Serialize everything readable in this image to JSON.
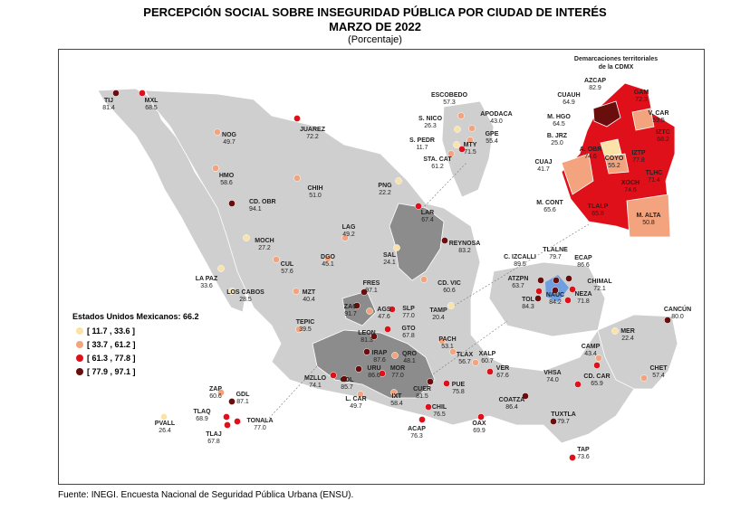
{
  "title": {
    "line1": "PERCEPCIÓN SOCIAL SOBRE INSEGURIDAD PÚBLICA POR CIUDAD DE INTERÉS",
    "line2": "MARZO DE 2022",
    "line3": "(Porcentaje)"
  },
  "source": "Fuente: INEGI. Encuesta Nacional de Seguridad Pública Urbana (ENSU).",
  "legend": {
    "title": "Estados Unidos Mexicanos: 66.2",
    "ranges": [
      "[ 11.7 , 33.6 ]",
      "[ 33.7 , 61.2 ]",
      "[ 61.3 , 77.8 ]",
      "[ 77.9 , 97.1 ]"
    ]
  },
  "colors": {
    "bin1": "#fbe3a8",
    "bin2": "#f3a47e",
    "bin3": "#e0101a",
    "bin4": "#6a0d0d",
    "land": "#cfcfcf",
    "land_dark": "#8c8c8c",
    "highlight_blue": "#6f9fe0"
  },
  "inset": {
    "title_line1": "Demarcaciones territoriales",
    "title_line2": "de la CDMX",
    "districts": [
      {
        "name": "AZCAP",
        "value": "82.9",
        "bin": 4
      },
      {
        "name": "GAM",
        "value": "72.3",
        "bin": 3
      },
      {
        "name": "CUAUH",
        "value": "64.9",
        "bin": 3
      },
      {
        "name": "V. CAR",
        "value": "59.5",
        "bin": 2
      },
      {
        "name": "M. HGO",
        "value": "64.5",
        "bin": 3
      },
      {
        "name": "IZTC",
        "value": "68.2",
        "bin": 3
      },
      {
        "name": "B. JRZ",
        "value": "25.0",
        "bin": 1
      },
      {
        "name": "A. OBR",
        "value": "74.6",
        "bin": 3
      },
      {
        "name": "COYO",
        "value": "55.2",
        "bin": 2
      },
      {
        "name": "IZTP",
        "value": "77.8",
        "bin": 3
      },
      {
        "name": "CUAJ",
        "value": "41.7",
        "bin": 2
      },
      {
        "name": "TLHC",
        "value": "71.4",
        "bin": 3
      },
      {
        "name": "XOCH",
        "value": "74.6",
        "bin": 3
      },
      {
        "name": "M. CONT",
        "value": "65.6",
        "bin": 3
      },
      {
        "name": "TLALP",
        "value": "65.8",
        "bin": 3
      },
      {
        "name": "M. ALTA",
        "value": "50.8",
        "bin": 2
      }
    ]
  },
  "cities": [
    {
      "name": "TIJ",
      "value": "81.4",
      "bin": 4
    },
    {
      "name": "MXL",
      "value": "68.5",
      "bin": 3
    },
    {
      "name": "NOG",
      "value": "49.7",
      "bin": 2
    },
    {
      "name": "JUAREZ",
      "value": "72.2",
      "bin": 3
    },
    {
      "name": "HMO",
      "value": "58.6",
      "bin": 2
    },
    {
      "name": "CHIH",
      "value": "51.0",
      "bin": 2
    },
    {
      "name": "CD. OBR",
      "value": "94.1",
      "bin": 4
    },
    {
      "name": "PNG",
      "value": "22.2",
      "bin": 1
    },
    {
      "name": "ESCOBEDO",
      "value": "57.3",
      "bin": 2
    },
    {
      "name": "S. NICO",
      "value": "26.3",
      "bin": 1
    },
    {
      "name": "APODACA",
      "value": "43.0",
      "bin": 2
    },
    {
      "name": "GPE",
      "value": "55.4",
      "bin": 2
    },
    {
      "name": "S. PEDR",
      "value": "11.7",
      "bin": 1
    },
    {
      "name": "MTY",
      "value": "71.5",
      "bin": 3
    },
    {
      "name": "STA. CAT",
      "value": "61.2",
      "bin": 2
    },
    {
      "name": "LAR",
      "value": "67.4",
      "bin": 3
    },
    {
      "name": "REYNOSA",
      "value": "83.2",
      "bin": 4
    },
    {
      "name": "LAG",
      "value": "49.2",
      "bin": 2
    },
    {
      "name": "MOCH",
      "value": "27.2",
      "bin": 1
    },
    {
      "name": "SAL",
      "value": "24.1",
      "bin": 1
    },
    {
      "name": "DGO",
      "value": "45.1",
      "bin": 2
    },
    {
      "name": "CUL",
      "value": "57.6",
      "bin": 2
    },
    {
      "name": "LA PAZ",
      "value": "33.6",
      "bin": 1
    },
    {
      "name": "LOS CABOS",
      "value": "28.5",
      "bin": 1
    },
    {
      "name": "MZT",
      "value": "40.4",
      "bin": 2
    },
    {
      "name": "FRES",
      "value": "97.1",
      "bin": 4
    },
    {
      "name": "CD. VIC",
      "value": "60.6",
      "bin": 2
    },
    {
      "name": "ZAC",
      "value": "91.7",
      "bin": 4
    },
    {
      "name": "AGS",
      "value": "47.6",
      "bin": 2
    },
    {
      "name": "SLP",
      "value": "77.0",
      "bin": 3
    },
    {
      "name": "TAMP",
      "value": "20.4",
      "bin": 1
    },
    {
      "name": "TEPIC",
      "value": "39.5",
      "bin": 2
    },
    {
      "name": "LEON",
      "value": "81.3",
      "bin": 4
    },
    {
      "name": "GTO",
      "value": "67.8",
      "bin": 3
    },
    {
      "name": "PACH",
      "value": "53.1",
      "bin": 2
    },
    {
      "name": "QRO",
      "value": "48.1",
      "bin": 2
    },
    {
      "name": "IRAP",
      "value": "87.6",
      "bin": 4
    },
    {
      "name": "TLAX",
      "value": "56.7",
      "bin": 2
    },
    {
      "name": "XALP",
      "value": "60.7",
      "bin": 2
    },
    {
      "name": "URU",
      "value": "86.6",
      "bin": 4
    },
    {
      "name": "MOR",
      "value": "77.0",
      "bin": 3
    },
    {
      "name": "MZLLO",
      "value": "74.1",
      "bin": 3
    },
    {
      "name": "COL",
      "value": "85.7",
      "bin": 4
    },
    {
      "name": "VER",
      "value": "67.6",
      "bin": 3
    },
    {
      "name": "CUER",
      "value": "81.5",
      "bin": 4
    },
    {
      "name": "PUE",
      "value": "75.8",
      "bin": 3
    },
    {
      "name": "L. CAR",
      "value": "49.7",
      "bin": 2
    },
    {
      "name": "IXT",
      "value": "58.4",
      "bin": 2
    },
    {
      "name": "ZAP",
      "value": "60.6",
      "bin": 2
    },
    {
      "name": "GDL",
      "value": "87.1",
      "bin": 4
    },
    {
      "name": "TLAQ",
      "value": "68.9",
      "bin": 3
    },
    {
      "name": "TONALA",
      "value": "77.0",
      "bin": 3
    },
    {
      "name": "TLAJ",
      "value": "67.8",
      "bin": 3
    },
    {
      "name": "PVALL",
      "value": "26.4",
      "bin": 1
    },
    {
      "name": "CHIL",
      "value": "76.5",
      "bin": 3
    },
    {
      "name": "ACAP",
      "value": "76.3",
      "bin": 3
    },
    {
      "name": "OAX",
      "value": "69.9",
      "bin": 3
    },
    {
      "name": "COATZA",
      "value": "86.4",
      "bin": 4
    },
    {
      "name": "VHSA",
      "value": "74.0",
      "bin": 3
    },
    {
      "name": "CD. CAR",
      "value": "65.9",
      "bin": 3
    },
    {
      "name": "CAMP",
      "value": "43.4",
      "bin": 2
    },
    {
      "name": "MER",
      "value": "22.4",
      "bin": 1
    },
    {
      "name": "CANCÚN",
      "value": "80.0",
      "bin": 4
    },
    {
      "name": "CHET",
      "value": "57.4",
      "bin": 2
    },
    {
      "name": "TUXTLA",
      "value": "79.7",
      "bin": 4
    },
    {
      "name": "TAP",
      "value": "73.6",
      "bin": 3
    },
    {
      "name": "C. IZCALLI",
      "value": "89.5",
      "bin": 4
    },
    {
      "name": "TLALNE",
      "value": "79.7",
      "bin": 4
    },
    {
      "name": "ECAP",
      "value": "86.6",
      "bin": 4
    },
    {
      "name": "ATZPN",
      "value": "63.7",
      "bin": 3
    },
    {
      "name": "CHIMAL",
      "value": "72.1",
      "bin": 3
    },
    {
      "name": "TOL",
      "value": "84.3",
      "bin": 4
    },
    {
      "name": "NAUC",
      "value": "84.2",
      "bin": 4
    },
    {
      "name": "NEZA",
      "value": "71.8",
      "bin": 3
    }
  ]
}
